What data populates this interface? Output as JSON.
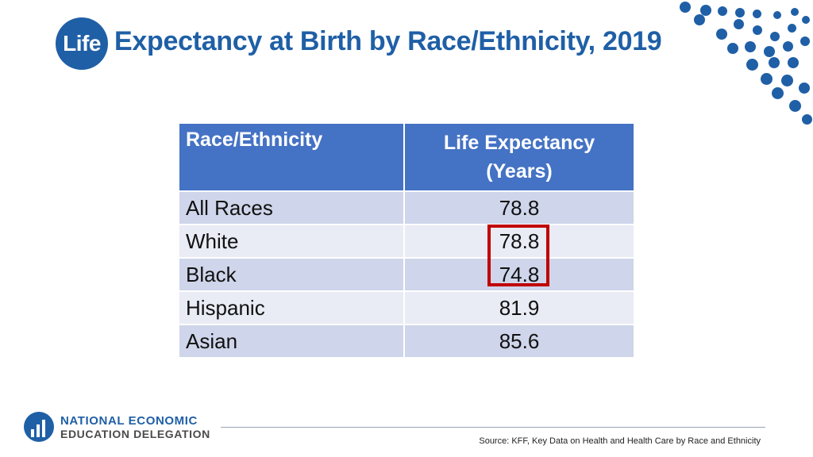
{
  "title": {
    "badge": "Life",
    "rest": "Expectancy at Birth by Race/Ethnicity, 2019"
  },
  "table": {
    "headers": [
      "Race/Ethnicity",
      "Life Expectancy",
      "(Years)"
    ],
    "rows": [
      {
        "group": "All Races",
        "value": "78.8"
      },
      {
        "group": "White",
        "value": "78.8"
      },
      {
        "group": "Black",
        "value": "74.8"
      },
      {
        "group": "Hispanic",
        "value": "81.9"
      },
      {
        "group": "Asian",
        "value": "85.6"
      }
    ]
  },
  "highlight_color": "#c00000",
  "logo": {
    "line1": "NATIONAL ECONOMIC",
    "line2": "EDUCATION DELEGATION"
  },
  "source": {
    "prefix": "Source: KFF,",
    "text": "Key Data on Health and Health Care by Race and Ethnicity"
  },
  "colors": {
    "brand_blue": "#1f5fa6",
    "header_blue": "#4472c4",
    "row_odd": "#cfd5ea",
    "row_even": "#e9ebf5"
  }
}
